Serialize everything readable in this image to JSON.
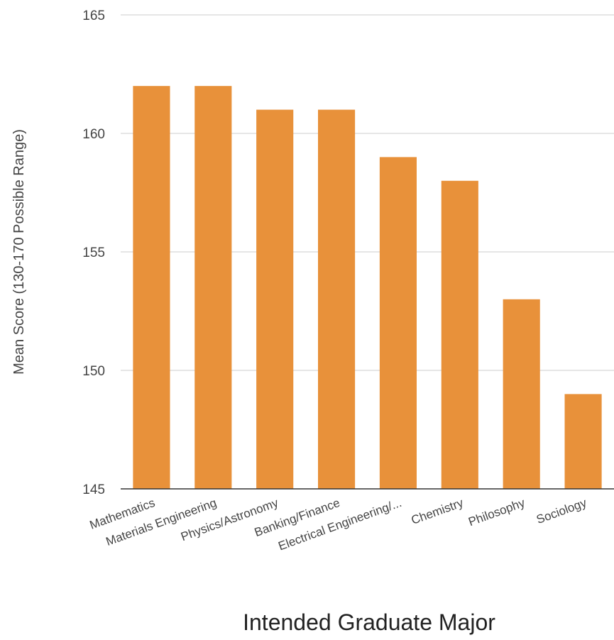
{
  "chart_data": {
    "type": "bar",
    "title": "",
    "xlabel": "Intended Graduate Major",
    "ylabel": "Mean Score (130-170 Possible Range)",
    "ylim": [
      145,
      165
    ],
    "yticks": [
      145,
      150,
      155,
      160,
      165
    ],
    "categories": [
      "Mathematics",
      "Materials Engineering",
      "Physics/Astronomy",
      "Banking/Finance",
      "Electrical Engineering/...",
      "Chemistry",
      "Philosophy",
      "Sociology"
    ],
    "values": [
      162,
      162,
      161,
      161,
      159,
      158,
      153,
      149
    ],
    "bar_color": "#e8913a",
    "grid": true
  }
}
